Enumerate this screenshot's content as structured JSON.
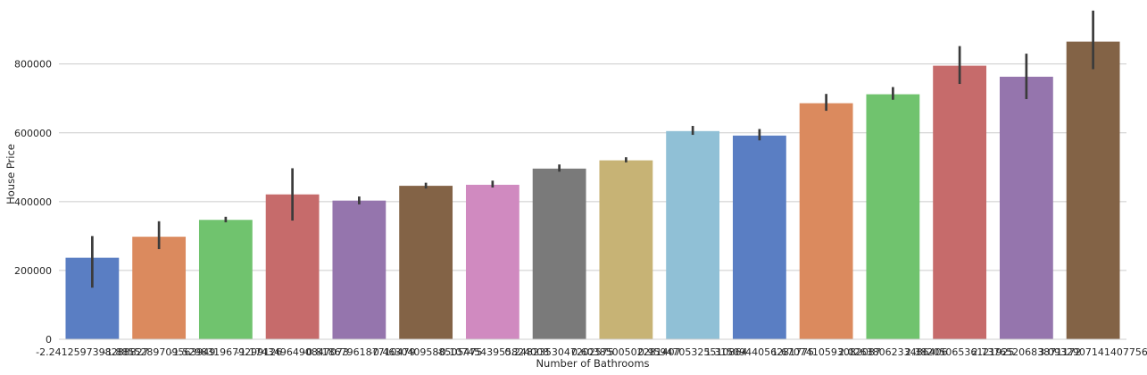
{
  "chart_data": {
    "type": "bar",
    "xlabel": "Number of Bathrooms",
    "ylabel": "House Price",
    "ylim": [
      0,
      960000
    ],
    "yticks": [
      0,
      200000,
      400000,
      600000,
      800000
    ],
    "grid": "horizontal",
    "categories": [
      "-2.2412597398288827",
      "-1.8855289709563949",
      "-1.5298319679299126",
      "-1.1743496490847073",
      "-0.8186796187710479",
      "-0.4630409588505475",
      "-0.1074543955824008",
      "0.2482353047202575",
      "0.6038500502281407",
      "0.9594705325510864",
      "1.3150944056281775",
      "1.6707410593082087",
      "2.0263806233486406",
      "2.3820506536121925",
      "2.7376520683871172",
      "3.0932907141407756"
    ],
    "tick_labels": [
      "-2.2412597398288827",
      "-1.8855289709563949",
      "-1.5298319679299126",
      "-1.1743496490847073",
      "-0.8186796187710479",
      "-0.4630409588505475",
      "-0.1074543955824008",
      "0.2482353047202575",
      "0.6038500502281407",
      "0.9594705325510864",
      "1.3150944056281775",
      "1.6707410593082087",
      "2.0263806233486406",
      "2.3820506536121925",
      "2.7376520683871172",
      "3.0932907141407756"
    ],
    "values": [
      237000,
      298000,
      347000,
      421000,
      403000,
      446000,
      449000,
      496000,
      520000,
      605000,
      592000,
      686000,
      712000,
      795000,
      763000,
      865000
    ],
    "error_low": [
      150000,
      262000,
      340000,
      345000,
      392000,
      438000,
      441000,
      487000,
      514000,
      594000,
      578000,
      664000,
      696000,
      742000,
      698000,
      785000
    ],
    "error_high": [
      300000,
      343000,
      356000,
      497000,
      415000,
      455000,
      461000,
      508000,
      529000,
      620000,
      611000,
      713000,
      733000,
      852000,
      830000,
      955000
    ],
    "colors": [
      "#5a7ec3",
      "#db8a5e",
      "#70c36e",
      "#c66b6b",
      "#9575ad",
      "#836346",
      "#d08ac0",
      "#7a7a7a",
      "#c7b375",
      "#90c0d6",
      "#5a7ec3",
      "#db8a5e",
      "#70c36e",
      "#c66b6b",
      "#9575ad",
      "#836346"
    ]
  }
}
